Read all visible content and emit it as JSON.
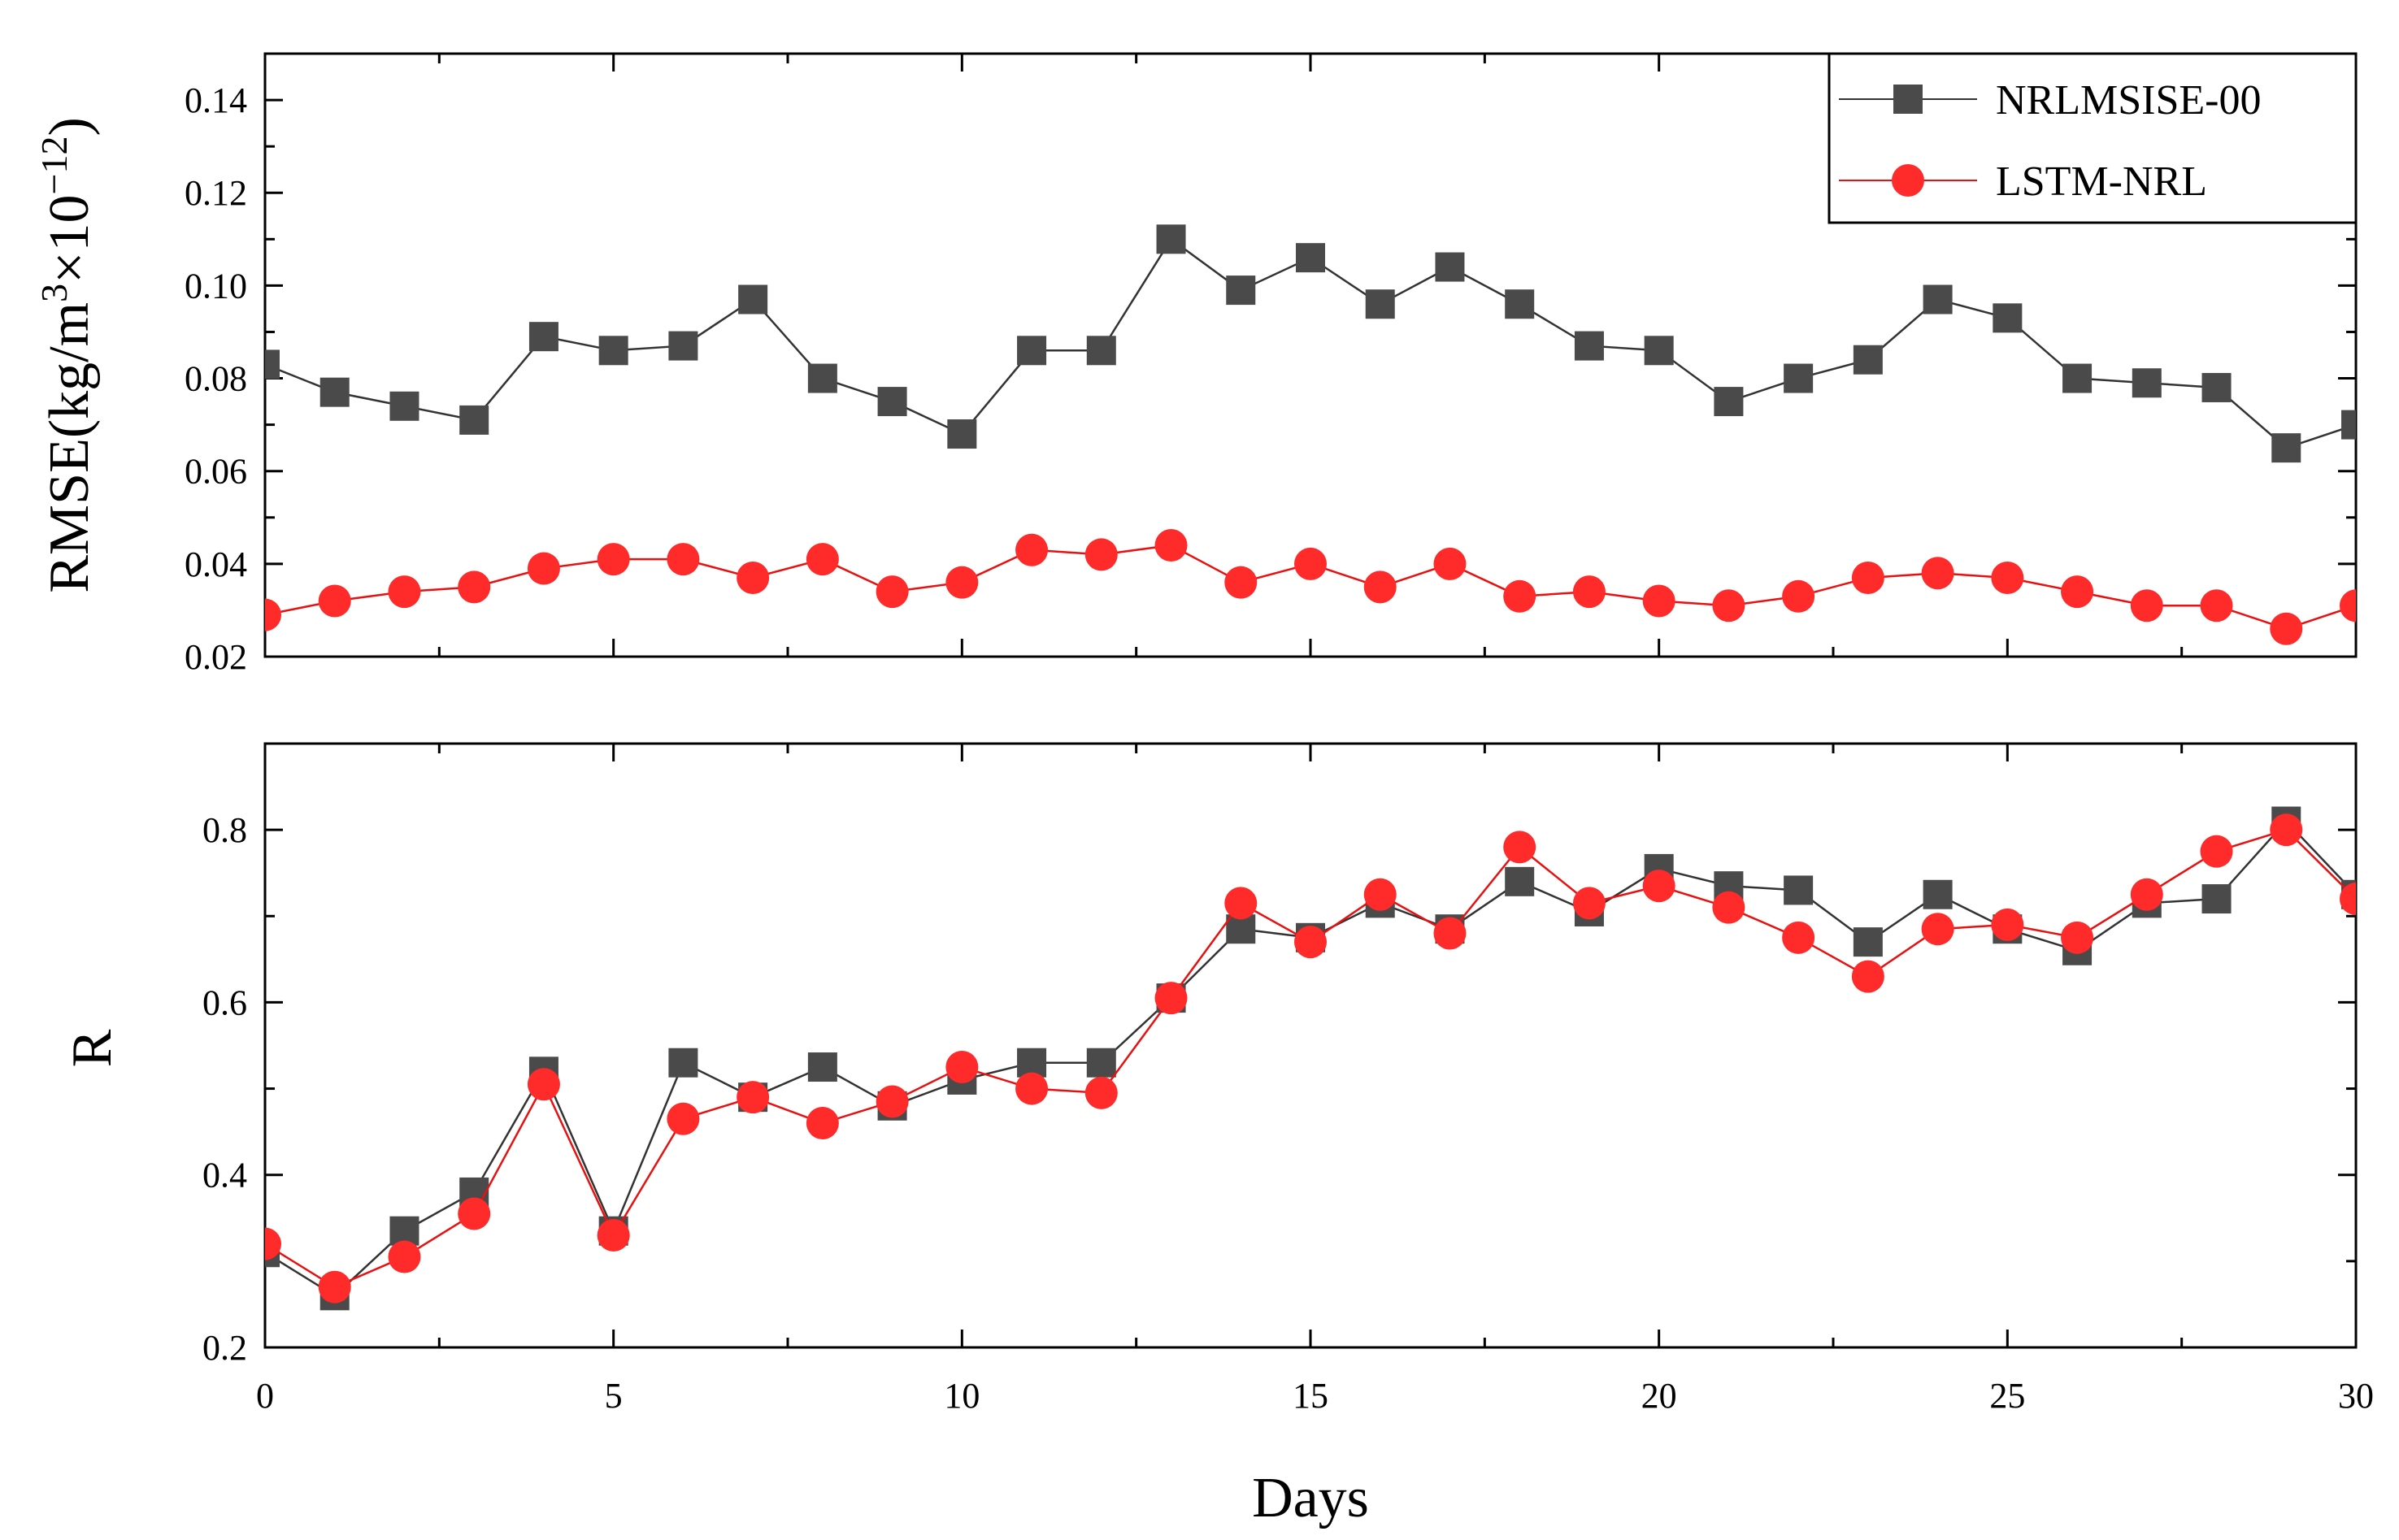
{
  "colors": {
    "nrl": "#4a4a4a",
    "nrl_line": "#333333",
    "lstm": "#ff2a2a",
    "lstm_line": "#e81010",
    "axis": "#000000"
  },
  "chart_data": [
    {
      "id": "rmse",
      "type": "line",
      "ylabel_main": "RMSE(kg/m",
      "ylabel_sup1": "3",
      "ylabel_mid": "×10",
      "ylabel_sup2": "−12",
      "ylabel_end": ")",
      "xlim": [
        0,
        30
      ],
      "ylim": [
        0.02,
        0.15
      ],
      "yticks": [
        0.02,
        0.04,
        0.06,
        0.08,
        0.1,
        0.12,
        0.14
      ],
      "ytick_labels": [
        "0.02",
        "0.04",
        "0.06",
        "0.08",
        "0.10",
        "0.12",
        "0.14"
      ],
      "x": [
        0,
        1,
        2,
        3,
        4,
        5,
        6,
        7,
        8,
        9,
        10,
        11,
        12,
        13,
        14,
        15,
        16,
        17,
        18,
        19,
        20,
        21,
        22,
        23,
        24,
        25,
        26,
        27,
        28,
        29,
        30
      ],
      "series": [
        {
          "name": "NRLMSISE-00",
          "marker": "square",
          "values": [
            0.083,
            0.077,
            0.074,
            0.071,
            0.089,
            0.086,
            0.087,
            0.097,
            0.08,
            0.075,
            0.068,
            0.086,
            0.086,
            0.11,
            0.099,
            0.106,
            0.096,
            0.104,
            0.096,
            0.087,
            0.086,
            0.075,
            0.08,
            0.084,
            0.097,
            0.093,
            0.08,
            0.079,
            0.078,
            0.065,
            0.07
          ]
        },
        {
          "name": "LSTM-NRL",
          "marker": "circle",
          "values": [
            0.029,
            0.032,
            0.034,
            0.035,
            0.039,
            0.041,
            0.041,
            0.037,
            0.041,
            0.034,
            0.036,
            0.043,
            0.042,
            0.044,
            0.036,
            0.04,
            0.035,
            0.04,
            0.033,
            0.034,
            0.032,
            0.031,
            0.033,
            0.037,
            0.038,
            0.037,
            0.034,
            0.031,
            0.031,
            0.026,
            0.031
          ]
        }
      ],
      "legend": {
        "position": "top-right",
        "entries": [
          "NRLMSISE-00",
          "LSTM-NRL"
        ]
      }
    },
    {
      "id": "r",
      "type": "line",
      "ylabel": "R",
      "xlabel": "Days",
      "xlim": [
        0,
        30
      ],
      "ylim": [
        0.2,
        0.9
      ],
      "yticks": [
        0.2,
        0.4,
        0.6,
        0.8
      ],
      "ytick_labels": [
        "0.2",
        "0.4",
        "0.6",
        "0.8"
      ],
      "xticks": [
        0,
        5,
        10,
        15,
        20,
        25,
        30
      ],
      "xtick_labels": [
        "0",
        "5",
        "10",
        "15",
        "20",
        "25",
        "30"
      ],
      "x": [
        0,
        1,
        2,
        3,
        4,
        5,
        6,
        7,
        8,
        9,
        10,
        11,
        12,
        13,
        14,
        15,
        16,
        17,
        18,
        19,
        20,
        21,
        22,
        23,
        24,
        25,
        26,
        27,
        28,
        29,
        30
      ],
      "series": [
        {
          "name": "NRLMSISE-00",
          "marker": "square",
          "values": [
            0.31,
            0.26,
            0.335,
            0.38,
            0.52,
            0.335,
            0.53,
            0.49,
            0.525,
            0.48,
            0.51,
            0.53,
            0.53,
            0.605,
            0.685,
            0.675,
            0.715,
            0.685,
            0.74,
            0.705,
            0.755,
            0.735,
            0.73,
            0.67,
            0.725,
            0.685,
            0.66,
            0.715,
            0.72,
            0.81,
            0.725
          ]
        },
        {
          "name": "LSTM-NRL",
          "marker": "circle",
          "values": [
            0.32,
            0.27,
            0.305,
            0.355,
            0.505,
            0.33,
            0.465,
            0.49,
            0.46,
            0.485,
            0.525,
            0.5,
            0.495,
            0.605,
            0.715,
            0.67,
            0.725,
            0.68,
            0.78,
            0.715,
            0.735,
            0.71,
            0.675,
            0.63,
            0.685,
            0.69,
            0.675,
            0.725,
            0.775,
            0.8,
            0.72
          ]
        }
      ]
    }
  ]
}
